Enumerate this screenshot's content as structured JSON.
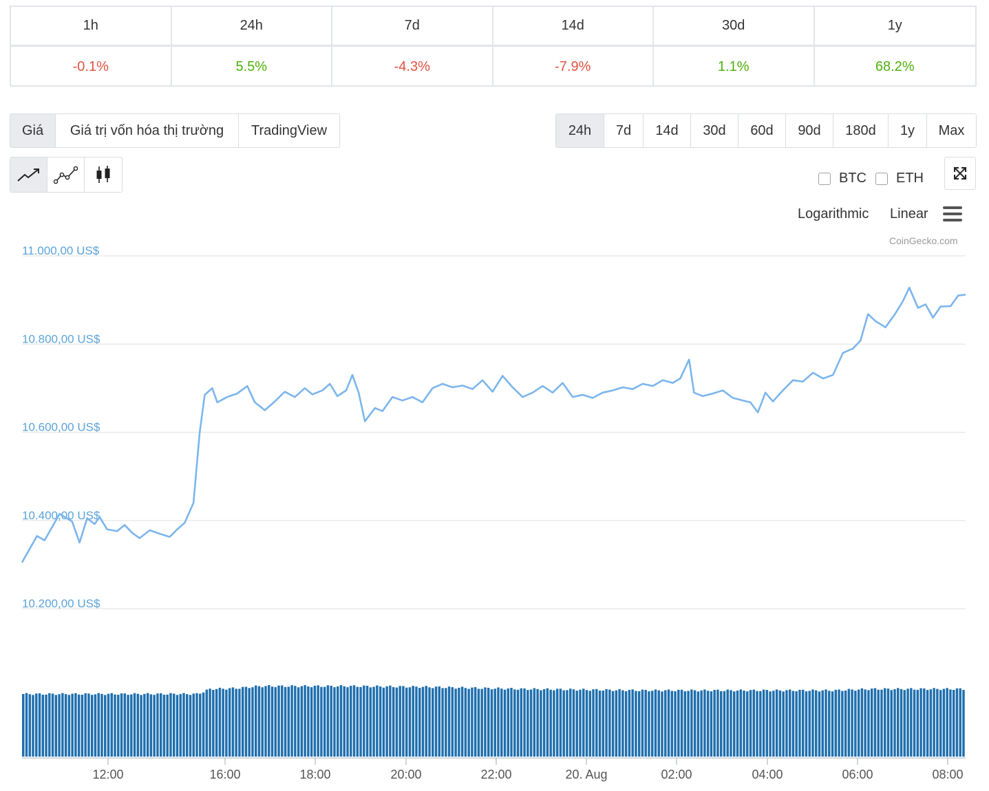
{
  "change_table": {
    "headers": [
      "1h",
      "24h",
      "7d",
      "14d",
      "30d",
      "1y"
    ],
    "values": [
      "-0.1%",
      "5.5%",
      "-4.3%",
      "-7.9%",
      "1.1%",
      "68.2%"
    ]
  },
  "view_tabs": [
    "Giá",
    "Giá trị vốn hóa thị trường",
    "TradingView"
  ],
  "range_tabs": [
    "24h",
    "7d",
    "14d",
    "30d",
    "60d",
    "90d",
    "180d",
    "1y",
    "Max"
  ],
  "compare": {
    "btc": "BTC",
    "eth": "ETH"
  },
  "scale": {
    "log": "Logarithmic",
    "linear": "Linear"
  },
  "credits": "CoinGecko.com",
  "colors": {
    "line": "#7cb5ec",
    "volume": "#1f6fae",
    "neg": "#e15241",
    "pos": "#4eaf0a"
  },
  "chart_data": {
    "type": "line",
    "y_ticks": [
      "11.000,00 US$",
      "10.800,00 US$",
      "10.600,00 US$",
      "10.400,00 US$",
      "10.200,00 US$"
    ],
    "x_ticks": [
      "12:00",
      "16:00",
      "18:00",
      "20:00",
      "22:00",
      "20. Aug",
      "02:00",
      "04:00",
      "06:00",
      "08:00"
    ],
    "ylim": [
      10200,
      11000
    ],
    "series": [
      {
        "key": "price",
        "anchors": [
          [
            0,
            10305
          ],
          [
            1.2,
            10365
          ],
          [
            1.8,
            10355
          ],
          [
            2.5,
            10390
          ],
          [
            3.0,
            10415
          ],
          [
            4.0,
            10398
          ],
          [
            4.6,
            10350
          ],
          [
            5.2,
            10405
          ],
          [
            5.8,
            10392
          ],
          [
            6.2,
            10408
          ],
          [
            6.8,
            10380
          ],
          [
            7.6,
            10376
          ],
          [
            8.2,
            10390
          ],
          [
            8.8,
            10372
          ],
          [
            9.4,
            10360
          ],
          [
            10.2,
            10378
          ],
          [
            11.0,
            10370
          ],
          [
            11.8,
            10363
          ],
          [
            12.4,
            10380
          ],
          [
            13.0,
            10395
          ],
          [
            13.7,
            10440
          ],
          [
            14.2,
            10600
          ],
          [
            14.6,
            10685
          ],
          [
            15.2,
            10700
          ],
          [
            15.6,
            10668
          ],
          [
            16.4,
            10680
          ],
          [
            17.2,
            10688
          ],
          [
            18.0,
            10705
          ],
          [
            18.6,
            10668
          ],
          [
            19.4,
            10650
          ],
          [
            20.2,
            10670
          ],
          [
            21.0,
            10692
          ],
          [
            21.8,
            10680
          ],
          [
            22.6,
            10700
          ],
          [
            23.2,
            10686
          ],
          [
            24.0,
            10695
          ],
          [
            24.6,
            10710
          ],
          [
            25.2,
            10682
          ],
          [
            25.9,
            10695
          ],
          [
            26.4,
            10730
          ],
          [
            26.9,
            10690
          ],
          [
            27.4,
            10625
          ],
          [
            28.2,
            10655
          ],
          [
            28.8,
            10648
          ],
          [
            29.6,
            10680
          ],
          [
            30.4,
            10672
          ],
          [
            31.2,
            10680
          ],
          [
            32.0,
            10668
          ],
          [
            32.8,
            10700
          ],
          [
            33.6,
            10710
          ],
          [
            34.4,
            10702
          ],
          [
            35.2,
            10706
          ],
          [
            36.0,
            10698
          ],
          [
            36.8,
            10718
          ],
          [
            37.6,
            10692
          ],
          [
            38.4,
            10728
          ],
          [
            39.2,
            10702
          ],
          [
            40.0,
            10680
          ],
          [
            40.8,
            10690
          ],
          [
            41.6,
            10705
          ],
          [
            42.4,
            10690
          ],
          [
            43.2,
            10712
          ],
          [
            44.0,
            10680
          ],
          [
            44.8,
            10685
          ],
          [
            45.6,
            10678
          ],
          [
            46.4,
            10690
          ],
          [
            47.2,
            10695
          ],
          [
            48.0,
            10702
          ],
          [
            48.8,
            10698
          ],
          [
            49.6,
            10710
          ],
          [
            50.4,
            10705
          ],
          [
            51.2,
            10718
          ],
          [
            52.0,
            10712
          ],
          [
            52.6,
            10722
          ],
          [
            53.3,
            10765
          ],
          [
            53.7,
            10690
          ],
          [
            54.4,
            10682
          ],
          [
            55.2,
            10688
          ],
          [
            56.0,
            10695
          ],
          [
            56.8,
            10678
          ],
          [
            57.6,
            10672
          ],
          [
            58.2,
            10668
          ],
          [
            58.8,
            10645
          ],
          [
            59.4,
            10690
          ],
          [
            60.0,
            10670
          ],
          [
            60.8,
            10695
          ],
          [
            61.6,
            10718
          ],
          [
            62.4,
            10715
          ],
          [
            63.2,
            10735
          ],
          [
            64.0,
            10722
          ],
          [
            64.8,
            10730
          ],
          [
            65.6,
            10780
          ],
          [
            66.4,
            10790
          ],
          [
            67.0,
            10808
          ],
          [
            67.6,
            10868
          ],
          [
            68.2,
            10852
          ],
          [
            69.0,
            10838
          ],
          [
            69.8,
            10870
          ],
          [
            70.4,
            10898
          ],
          [
            70.9,
            10928
          ],
          [
            71.6,
            10882
          ],
          [
            72.2,
            10890
          ],
          [
            72.8,
            10860
          ],
          [
            73.4,
            10885
          ],
          [
            74.2,
            10886
          ],
          [
            74.8,
            10910
          ],
          [
            75.4,
            10912
          ]
        ]
      },
      {
        "key": "volume",
        "points": [
          [
            0,
            0.88
          ],
          [
            14,
            0.88
          ],
          [
            15,
            0.95
          ],
          [
            17,
            0.96
          ],
          [
            19,
            0.99
          ],
          [
            26,
            0.99
          ],
          [
            32,
            0.98
          ],
          [
            40,
            0.95
          ],
          [
            50,
            0.93
          ],
          [
            60,
            0.93
          ],
          [
            65,
            0.93
          ],
          [
            68,
            0.95
          ],
          [
            75.4,
            0.95
          ]
        ]
      }
    ]
  }
}
